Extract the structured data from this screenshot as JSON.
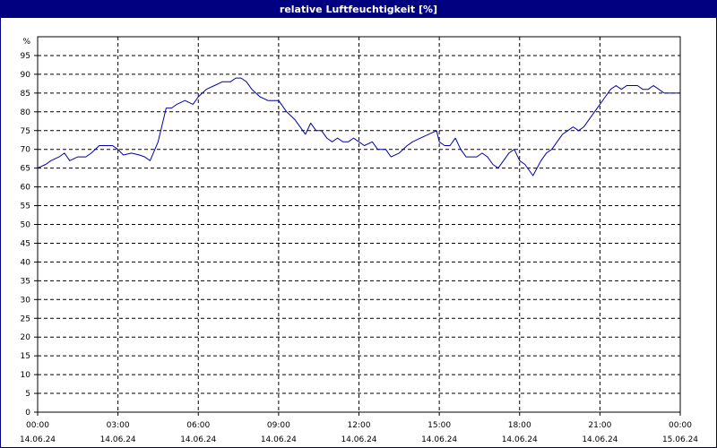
{
  "window": {
    "title": "relative Luftfeuchtigkeit [%]"
  },
  "chart_data": {
    "type": "line",
    "title": "relative Luftfeuchtigkeit [%]",
    "ylabel": "%",
    "xlabel": "",
    "ylim": [
      0,
      100
    ],
    "xlim_hours": [
      0,
      24
    ],
    "y_ticks": [
      0,
      5,
      10,
      15,
      20,
      25,
      30,
      35,
      40,
      45,
      50,
      55,
      60,
      65,
      70,
      75,
      80,
      85,
      90,
      95
    ],
    "x_ticks": [
      {
        "time": "00:00",
        "date": "14.06.24"
      },
      {
        "time": "03:00",
        "date": "14.06.24"
      },
      {
        "time": "06:00",
        "date": "14.06.24"
      },
      {
        "time": "09:00",
        "date": "14.06.24"
      },
      {
        "time": "12:00",
        "date": "14.06.24"
      },
      {
        "time": "15:00",
        "date": "14.06.24"
      },
      {
        "time": "18:00",
        "date": "14.06.24"
      },
      {
        "time": "21:00",
        "date": "14.06.24"
      },
      {
        "time": "00:00",
        "date": "15.06.24"
      }
    ],
    "grid": true,
    "line_color": "#0000aa",
    "series": [
      {
        "x_hours": [
          0.0,
          0.3,
          0.5,
          0.8,
          1.0,
          1.2,
          1.5,
          1.8,
          2.0,
          2.3,
          2.6,
          2.8,
          3.0,
          3.2,
          3.5,
          3.8,
          4.0,
          4.2,
          4.5,
          4.8,
          5.0,
          5.2,
          5.5,
          5.8,
          6.0,
          6.3,
          6.6,
          6.9,
          7.2,
          7.4,
          7.6,
          7.8,
          8.0,
          8.3,
          8.6,
          9.0,
          9.3,
          9.6,
          9.8,
          10.0,
          10.2,
          10.4,
          10.6,
          10.8,
          11.0,
          11.2,
          11.4,
          11.6,
          11.8,
          12.0,
          12.2,
          12.5,
          12.7,
          13.0,
          13.2,
          13.5,
          13.8,
          14.0,
          14.3,
          14.6,
          14.9,
          15.0,
          15.2,
          15.4,
          15.6,
          15.8,
          16.0,
          16.2,
          16.4,
          16.6,
          16.8,
          17.0,
          17.2,
          17.4,
          17.6,
          17.8,
          18.0,
          18.2,
          18.5,
          18.8,
          19.0,
          19.2,
          19.4,
          19.6,
          19.8,
          20.0,
          20.2,
          20.4,
          20.6,
          20.8,
          21.0,
          21.2,
          21.4,
          21.6,
          21.8,
          22.0,
          22.2,
          22.4,
          22.6,
          22.8,
          23.0,
          23.2,
          23.4,
          23.6,
          23.8,
          24.0
        ],
        "values": [
          65,
          66,
          67,
          68,
          69,
          67,
          68,
          68,
          69,
          71,
          71,
          71,
          70,
          68.5,
          69,
          68.5,
          68,
          67,
          72,
          81,
          81,
          82,
          83,
          82,
          84,
          86,
          87,
          88,
          88,
          89,
          89,
          88,
          86,
          84,
          83,
          83,
          80,
          78,
          76,
          74,
          77,
          75,
          75,
          73,
          72,
          73,
          72,
          72,
          73,
          72,
          71,
          72,
          70,
          70,
          68,
          69,
          71,
          72,
          73,
          74,
          75,
          72,
          71,
          71,
          73,
          70,
          68,
          68,
          68,
          69,
          68,
          66,
          65,
          67,
          69,
          70,
          67,
          66,
          63,
          67,
          69,
          70,
          72,
          74,
          75,
          76,
          75,
          76,
          78,
          80,
          82,
          84,
          86,
          87,
          86,
          87,
          87,
          87,
          86,
          86,
          87,
          86,
          85,
          85,
          85,
          85
        ]
      }
    ]
  }
}
